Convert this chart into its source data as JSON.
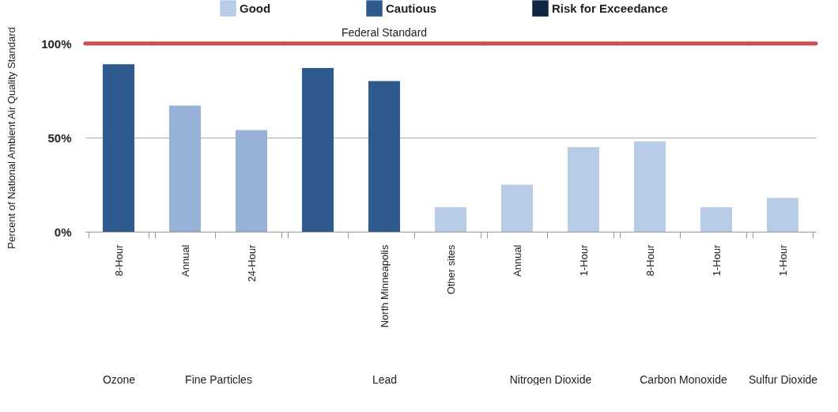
{
  "chart_data": [
    {
      "type": "bar",
      "xlabel": "Ozone",
      "ylabel": "Percent of National Ambient Air Quality Standard",
      "categories": [
        "8-Hour"
      ],
      "series": [
        {
          "name": "Good",
          "color": "#b8cbe7",
          "values": [
            null
          ]
        },
        {
          "name": "Cautious",
          "color": "#2f5a8e",
          "values": [
            89
          ]
        },
        {
          "name": "Risk for Exceedance",
          "color": "#0f2744",
          "values": [
            null
          ]
        }
      ],
      "ylim": [
        0,
        100
      ],
      "yticks": [
        {
          "value": 0,
          "label": "0%"
        },
        {
          "value": 50,
          "label": "50%"
        },
        {
          "value": 100,
          "label": "100%"
        }
      ],
      "grid": "y",
      "legend": "top",
      "ref_lines": [
        {
          "axis": "y",
          "value": 100,
          "color": "#c9504f"
        }
      ]
    },
    {
      "type": "bar",
      "xlabel": "Fine Particles",
      "categories": [
        "Annual",
        "24-Hour"
      ],
      "series": [
        {
          "color": "#97b1d8",
          "values": [
            67,
            54
          ]
        }
      ],
      "ylim": [
        0,
        100
      ],
      "yticks": [
        {
          "value": 0,
          "label": null
        },
        {
          "value": 50,
          "label": null
        },
        {
          "value": 100,
          "label": null
        }
      ],
      "grid": "y",
      "tick_labels": "x",
      "ref_lines": [
        {
          "axis": "y",
          "value": 100,
          "color": "#c9504f"
        }
      ]
    },
    {
      "type": "bar",
      "xlabel": "Lead",
      "categories": [
        null,
        "North Minneapolis",
        "Other sites"
      ],
      "series": [
        {
          "color": "#b8cbe7",
          "values": [
            null,
            null,
            13
          ]
        },
        {
          "color": "#2f5a8e",
          "values": [
            87,
            80,
            null
          ]
        }
      ],
      "ylim": [
        0,
        100
      ],
      "yticks": [
        {
          "value": 0,
          "label": null
        },
        {
          "value": 50,
          "label": null
        },
        {
          "value": 100,
          "label": null
        }
      ],
      "grid": "y",
      "tick_labels": "x",
      "ref_lines": [
        {
          "axis": "y",
          "value": 100,
          "color": "#c9504f",
          "label": "Federal Standard"
        }
      ]
    },
    {
      "type": "bar",
      "xlabel": "Nitrogen Dioxide",
      "categories": [
        "Annual",
        "1-Hour"
      ],
      "series": [
        {
          "color": "#b8cbe7",
          "values": [
            25,
            45
          ]
        }
      ],
      "ylim": [
        0,
        100
      ],
      "yticks": [
        {
          "value": 0,
          "label": null
        },
        {
          "value": 50,
          "label": null
        },
        {
          "value": 100,
          "label": null
        }
      ],
      "grid": "y",
      "tick_labels": "x",
      "ref_lines": [
        {
          "axis": "y",
          "value": 100,
          "color": "#c9504f"
        }
      ]
    },
    {
      "type": "bar",
      "xlabel": "Carbon Monoxide",
      "categories": [
        "8-Hour",
        "1-Hour"
      ],
      "series": [
        {
          "color": "#b8cbe7",
          "values": [
            48,
            13
          ]
        }
      ],
      "ylim": [
        0,
        100
      ],
      "yticks": [
        {
          "value": 0,
          "label": null
        },
        {
          "value": 50,
          "label": null
        },
        {
          "value": 100,
          "label": null
        }
      ],
      "grid": "y",
      "tick_labels": "x",
      "ref_lines": [
        {
          "axis": "y",
          "value": 100,
          "color": "#c9504f"
        }
      ]
    },
    {
      "type": "bar",
      "xlabel": "Sulfur Dioxide",
      "categories": [
        "1-Hour"
      ],
      "series": [
        {
          "color": "#b8cbe7",
          "values": [
            18
          ]
        }
      ],
      "ylim": [
        0,
        100
      ],
      "yticks": [
        {
          "value": 0,
          "label": null
        },
        {
          "value": 50,
          "label": null
        },
        {
          "value": 100,
          "label": null
        }
      ],
      "grid": "y",
      "tick_labels": "x",
      "ref_lines": [
        {
          "axis": "y",
          "value": 100,
          "color": "#c9504f"
        }
      ]
    }
  ]
}
